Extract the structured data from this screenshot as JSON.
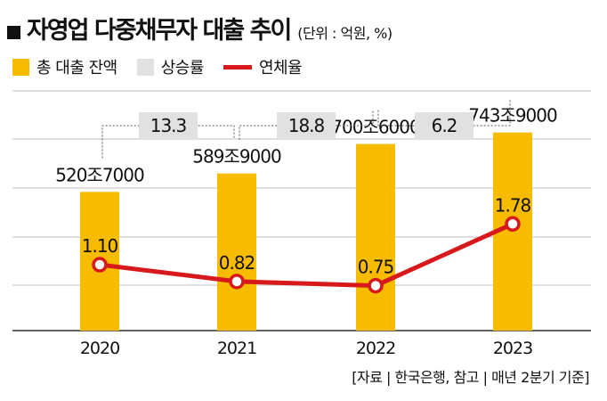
{
  "title": "자영업 다중채무자 대출 추이",
  "unit": "(단위 : 억원, %)",
  "legend": [
    {
      "label": "총 대출 잔액",
      "kind": "box",
      "color": "#f7bb00"
    },
    {
      "label": "상승률",
      "kind": "box",
      "color": "#e1e1e1"
    },
    {
      "label": "연체율",
      "kind": "line",
      "color": "#d7191c"
    }
  ],
  "source": "[자료 | 한국은행, 참고 | 매년 2분기 기준]",
  "chart_data": {
    "type": "bar+line",
    "categories": [
      "2020",
      "2021",
      "2022",
      "2023"
    ],
    "series": [
      {
        "name": "총 대출 잔액",
        "values": [
          5207000,
          5899000,
          7006000,
          7439000
        ],
        "labels": [
          "520조7000",
          "589조9000",
          "700조6000",
          "743조9000"
        ]
      },
      {
        "name": "연체율",
        "values": [
          1.1,
          0.82,
          0.75,
          1.78
        ],
        "labels": [
          "1.10",
          "0.82",
          "0.75",
          "1.78"
        ]
      }
    ],
    "growth": {
      "name": "상승률",
      "values": [
        13.3,
        18.8,
        6.2
      ],
      "labels": [
        "13.3",
        "18.8",
        "6.2"
      ]
    },
    "bar_range": [
      0,
      9000000
    ],
    "line_range": [
      0,
      4
    ],
    "grid": true,
    "colors": {
      "bar": "#f7bb00",
      "line": "#d7191c",
      "growth_box": "#e1e1e1",
      "grid": "#bfbfbf"
    }
  }
}
